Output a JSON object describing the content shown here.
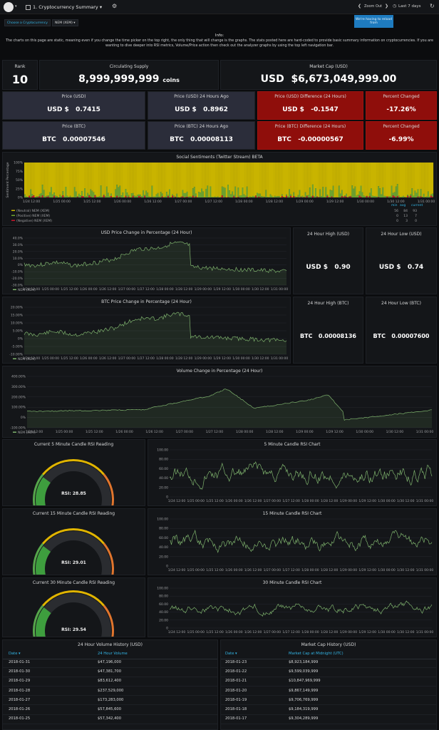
{
  "topbar": {
    "dashboard_title": "1. Cryptocurrency Summary",
    "zoom_out": "Zoom Out",
    "time_range": "Last 7 days"
  },
  "notice": {
    "text": "We're having to reload from"
  },
  "vars": {
    "choose_label": "Choose a Cryptocurrency",
    "selected": "NEM (XEM)"
  },
  "info": {
    "title": "Info:",
    "text": "The charts on this page are static, meaning even if you change the time picker on the top right, the only thing that will change is the graphs. The stats posted here are hard-coded to provide basic summary information on cryptocurrencies. If you are wanting to dive deeper into RSI metrics, Volume/Price action then check out the analyzer graphs by using the top left navigation bar."
  },
  "stats": {
    "rank": {
      "title": "Rank",
      "value": "10"
    },
    "supply": {
      "title": "Circulating Supply",
      "value": "8,999,999,999",
      "unit": "coins"
    },
    "mcap": {
      "title": "Market Cap (USD)",
      "value": "USD  $6,673,049,999.00"
    },
    "price_usd": {
      "title": "Price (USD)",
      "value": "USD $   0.7415"
    },
    "price_usd_24": {
      "title": "Price (USD) 24 Hours Ago",
      "value": "USD $   0.8962"
    },
    "diff_usd": {
      "title": "Price (USD) Difference (24 Hours)",
      "value": "USD $   -0.1547"
    },
    "pct": {
      "title": "Percent Changed",
      "value": "-17.26%"
    },
    "price_btc": {
      "title": "Price (BTC)",
      "value": "BTC   0.00007546"
    },
    "price_btc_24": {
      "title": "Price (BTC) 24 Hours Ago",
      "value": "BTC   0.00008113"
    },
    "diff_btc": {
      "title": "Price (BTC) Difference (24 Hours)",
      "value": "BTC   -0.00000567"
    },
    "pct_btc": {
      "title": "Percent Changed",
      "value": "-6.99%"
    },
    "high_usd": {
      "title": "24 Hour High (USD)",
      "value": "USD $   0.90"
    },
    "low_usd": {
      "title": "24 Hour Low (USD)",
      "value": "USD $   0.74"
    },
    "high_btc": {
      "title": "24 Hour High (BTC)",
      "value": "BTC   0.00008136"
    },
    "low_btc": {
      "title": "24 Hour Low (BTC)",
      "value": "BTC   0.00007600"
    }
  },
  "sentiment": {
    "title": "Social Sentiments (Twitter Stream) BETA",
    "ylabel": "Sentiment Percentage",
    "yticks": [
      "100%",
      "75%",
      "50%",
      "25%",
      "0%"
    ],
    "xticks": [
      "1/24 12:00",
      "1/25 00:00",
      "1/25 12:00",
      "1/26 00:00",
      "1/26 12:00",
      "1/27 00:00",
      "1/27 12:00",
      "1/28 00:00",
      "1/28 12:00",
      "1/29 00:00",
      "1/29 12:00",
      "1/30 00:00",
      "1/30 12:00",
      "1/31 00:00"
    ],
    "legend_headers": [
      "min",
      "avg",
      "current"
    ],
    "legend": [
      {
        "name": "(Neutral) NEM (XEM)",
        "color": "#c9b400",
        "min": "56",
        "avg": "84",
        "current": "93"
      },
      {
        "name": "(Positive) NEM (XEM)",
        "color": "#6ea32f",
        "min": "0",
        "avg": "13",
        "current": "7"
      },
      {
        "name": "(Negative) NEM (XEM)",
        "color": "#c4162a",
        "min": "0",
        "avg": "3",
        "current": "0"
      }
    ]
  },
  "usd_chart": {
    "title": "USD Price Change in Percentage (24 Hour)",
    "yticks": [
      "40.0%",
      "30.0%",
      "20.0%",
      "10.0%",
      "0%",
      "-10.0%",
      "-20.0%",
      "-30.0%"
    ],
    "xticks": [
      "1/24 12:00",
      "1/25 00:00",
      "1/25 12:00",
      "1/26 00:00",
      "1/26 12:00",
      "1/27 00:00",
      "1/27 12:00",
      "1/28 00:00",
      "1/28 12:00",
      "1/29 00:00",
      "1/29 12:00",
      "1/30 00:00",
      "1/30 12:00",
      "1/31 00:00"
    ],
    "legend": "NEM (XEM)"
  },
  "btc_chart": {
    "title": "BTC Price Change in Percentage (24 Hour)",
    "yticks": [
      "20.00%",
      "15.00%",
      "10.00%",
      "5.00%",
      "0%",
      "-5.00%",
      "-10.00%"
    ],
    "xticks": [
      "1/24 12:00",
      "1/25 00:00",
      "1/25 12:00",
      "1/26 00:00",
      "1/26 12:00",
      "1/27 00:00",
      "1/27 12:00",
      "1/28 00:00",
      "1/28 12:00",
      "1/29 00:00",
      "1/29 12:00",
      "1/30 00:00",
      "1/30 12:00",
      "1/31 00:00"
    ],
    "legend": "NEM (XEM)"
  },
  "vol_chart": {
    "title": "Volume Change in Percentage (24 Hour)",
    "yticks": [
      "400.00%",
      "300.00%",
      "200.00%",
      "100.00%",
      "0%",
      "-100.00%"
    ],
    "xticks": [
      "1/24 12:00",
      "1/25 00:00",
      "1/25 12:00",
      "1/26 00:00",
      "1/26 12:00",
      "1/27 00:00",
      "1/27 12:00",
      "1/28 00:00",
      "1/28 12:00",
      "1/29 00:00",
      "1/29 12:00",
      "1/30 00:00",
      "1/30 12:00",
      "1/31 00:00"
    ],
    "legend": "NEM (XEM)"
  },
  "rsi": [
    {
      "gauge_title": "Current 5 Minute Candle RSI Reading",
      "gauge_label": "RSI: 28.85",
      "value": 28.85,
      "chart_title": "5 Minute Candle RSI Chart"
    },
    {
      "gauge_title": "Current 15 Minute Candle RSI Reading",
      "gauge_label": "RSI: 29.01",
      "value": 29.01,
      "chart_title": "15 Minute Candle RSI Chart"
    },
    {
      "gauge_title": "Current 30 Minute Candle RSI Reading",
      "gauge_label": "RSI: 29.54",
      "value": 29.54,
      "chart_title": "30 Minute Candle RSI Chart"
    }
  ],
  "rsi_yticks": [
    "100.00",
    "80.00",
    "60.00",
    "40.00",
    "20.00",
    "0"
  ],
  "rsi_xticks": [
    "1/24 12:00",
    "1/25 00:00",
    "1/25 12:00",
    "1/26 00:00",
    "1/26 12:00",
    "1/27 00:00",
    "1/27 12:00",
    "1/28 00:00",
    "1/28 12:00",
    "1/29 00:00",
    "1/29 12:00",
    "1/30 00:00",
    "1/30 12:00",
    "1/31 00:00"
  ],
  "volume_table": {
    "title": "24 Hour Volume History (USD)",
    "col1": "Date",
    "col2": "24 Hour Volume",
    "rows": [
      [
        "2018-01-31",
        "$47,196,000"
      ],
      [
        "2018-01-30",
        "$47,381,700"
      ],
      [
        "2018-01-29",
        "$83,612,400"
      ],
      [
        "2018-01-28",
        "$237,529,000"
      ],
      [
        "2018-01-27",
        "$173,283,000"
      ],
      [
        "2018-01-26",
        "$57,845,600"
      ],
      [
        "2018-01-25",
        "$57,342,400"
      ]
    ]
  },
  "mcap_table": {
    "title": "Market Cap History (USD)",
    "col1": "Date",
    "col2": "Market Cap at Midnight (UTC)",
    "rows": [
      [
        "2018-01-23",
        "$8,923,184,999"
      ],
      [
        "2018-01-22",
        "$9,599,039,999"
      ],
      [
        "2018-01-21",
        "$10,847,969,999"
      ],
      [
        "2018-01-20",
        "$9,867,149,999"
      ],
      [
        "2018-01-19",
        "$9,706,769,999"
      ],
      [
        "2018-01-18",
        "$9,184,319,999"
      ],
      [
        "2018-01-17",
        "$9,304,289,999"
      ]
    ]
  },
  "colors": {
    "bg": "#0b0c0e",
    "panel": "#141619",
    "red": "#8f0e0b",
    "green": "#7eb26d",
    "yellow": "#c9b400",
    "link": "#33b5e5"
  }
}
